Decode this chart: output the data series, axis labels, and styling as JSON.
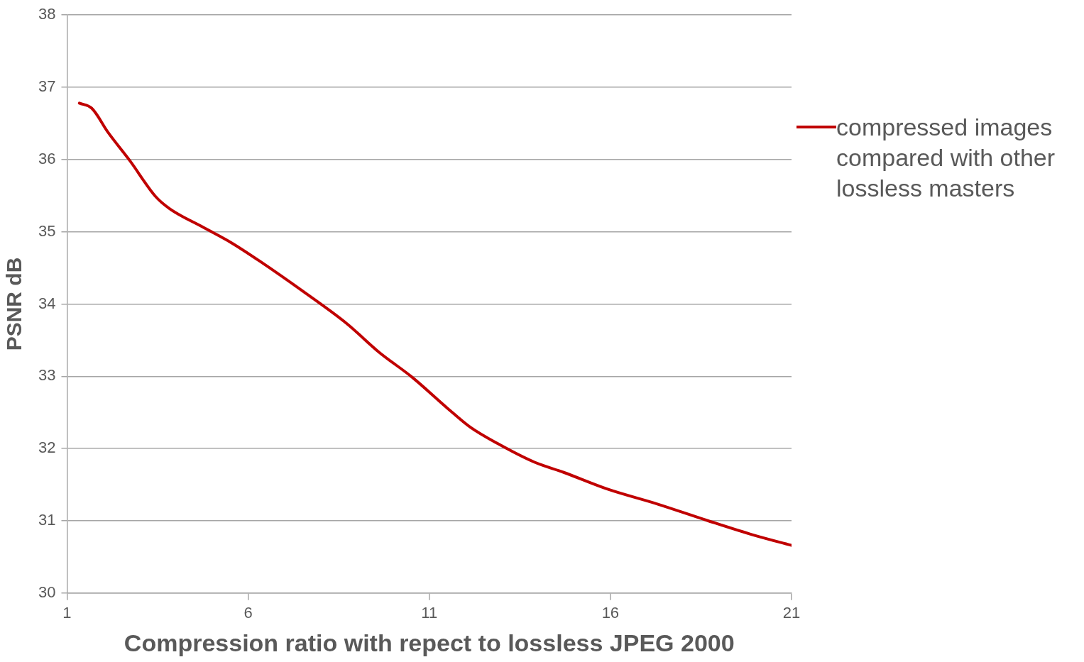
{
  "chart_data": {
    "type": "line",
    "xlabel": "Compression ratio with repect to lossless JPEG 2000",
    "ylabel": "PSNR dB",
    "xlim": [
      1,
      21
    ],
    "xticks": [
      1,
      6,
      11,
      16,
      21
    ],
    "ylim": [
      30,
      38
    ],
    "yticks": [
      30,
      31,
      32,
      33,
      34,
      35,
      36,
      37,
      38
    ],
    "grid": "y",
    "legend": "right",
    "marker": "none",
    "line_style": "solid",
    "series": [
      {
        "name": "compressed images compared with other lossless masters",
        "color": "#c00000",
        "x": [
          1.34,
          1.68,
          2.14,
          2.74,
          3.44,
          3.83,
          4.73,
          5.53,
          6.33,
          7.53,
          8.72,
          9.62,
          10.52,
          11.52,
          12.12,
          12.92,
          13.91,
          14.71,
          15.91,
          17.31,
          18.7,
          19.9,
          21
        ],
        "values": [
          36.78,
          36.71,
          36.37,
          35.98,
          35.49,
          35.32,
          35.07,
          34.85,
          34.59,
          34.17,
          33.73,
          33.33,
          32.99,
          32.55,
          32.3,
          32.06,
          31.81,
          31.67,
          31.44,
          31.23,
          31.0,
          30.81,
          30.66
        ]
      }
    ]
  }
}
